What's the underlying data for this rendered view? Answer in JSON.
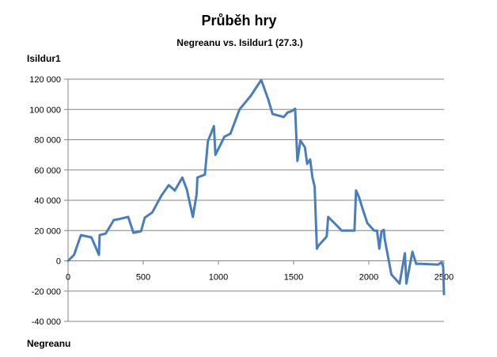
{
  "chart_data": {
    "type": "line",
    "title": "Průběh hry",
    "subtitle": "Negreanu vs. Isildur1 (27.3.)",
    "ylabel": "Isildur1",
    "xlabel": "Negreanu",
    "xlim": [
      0,
      2500
    ],
    "ylim": [
      -40000,
      120000
    ],
    "xticks": [
      0,
      500,
      1000,
      1500,
      2000,
      2500
    ],
    "yticks": [
      -40000,
      -20000,
      0,
      20000,
      40000,
      60000,
      80000,
      100000,
      120000
    ],
    "xtick_labels": [
      "0",
      "500",
      "1000",
      "1500",
      "2000",
      "2500"
    ],
    "ytick_labels": [
      "-40 000",
      "-20 000",
      "0",
      "20 000",
      "40 000",
      "60 000",
      "80 000",
      "100 000",
      "120 000"
    ],
    "grid": true,
    "legend": "none",
    "series_color": "#4a7ebb",
    "x": [
      0,
      40,
      85,
      155,
      205,
      210,
      250,
      305,
      335,
      400,
      435,
      485,
      510,
      560,
      620,
      670,
      710,
      760,
      790,
      830,
      855,
      860,
      910,
      930,
      970,
      980,
      1040,
      1080,
      1140,
      1215,
      1285,
      1330,
      1360,
      1435,
      1460,
      1490,
      1510,
      1525,
      1545,
      1555,
      1575,
      1590,
      1610,
      1625,
      1640,
      1655,
      1665,
      1720,
      1730,
      1780,
      1820,
      1860,
      1905,
      1915,
      1935,
      1960,
      1990,
      2035,
      2055,
      2070,
      2085,
      2100,
      2105,
      2150,
      2205,
      2240,
      2250,
      2290,
      2315,
      2325,
      2335,
      2345,
      2460,
      2485,
      2495,
      2500
    ],
    "y": [
      0,
      4000,
      17000,
      15500,
      4000,
      17000,
      18000,
      27000,
      27500,
      29000,
      18500,
      19500,
      28500,
      32000,
      43000,
      50000,
      46500,
      55000,
      47000,
      29000,
      44000,
      55000,
      57000,
      79000,
      89000,
      70000,
      82000,
      84000,
      100000,
      109000,
      119500,
      107000,
      97000,
      95000,
      98000,
      99000,
      100500,
      66000,
      79500,
      78000,
      75000,
      64000,
      67000,
      55000,
      49000,
      8000,
      10000,
      16000,
      29000,
      24000,
      20000,
      20000,
      20000,
      46500,
      42000,
      34000,
      25000,
      20000,
      20000,
      8000,
      19500,
      20500,
      15000,
      -9000,
      -15000,
      5000,
      -15000,
      6000,
      -2000,
      -2000,
      -2000,
      -2000,
      -2500,
      -1000,
      -4000,
      -22000
    ]
  }
}
